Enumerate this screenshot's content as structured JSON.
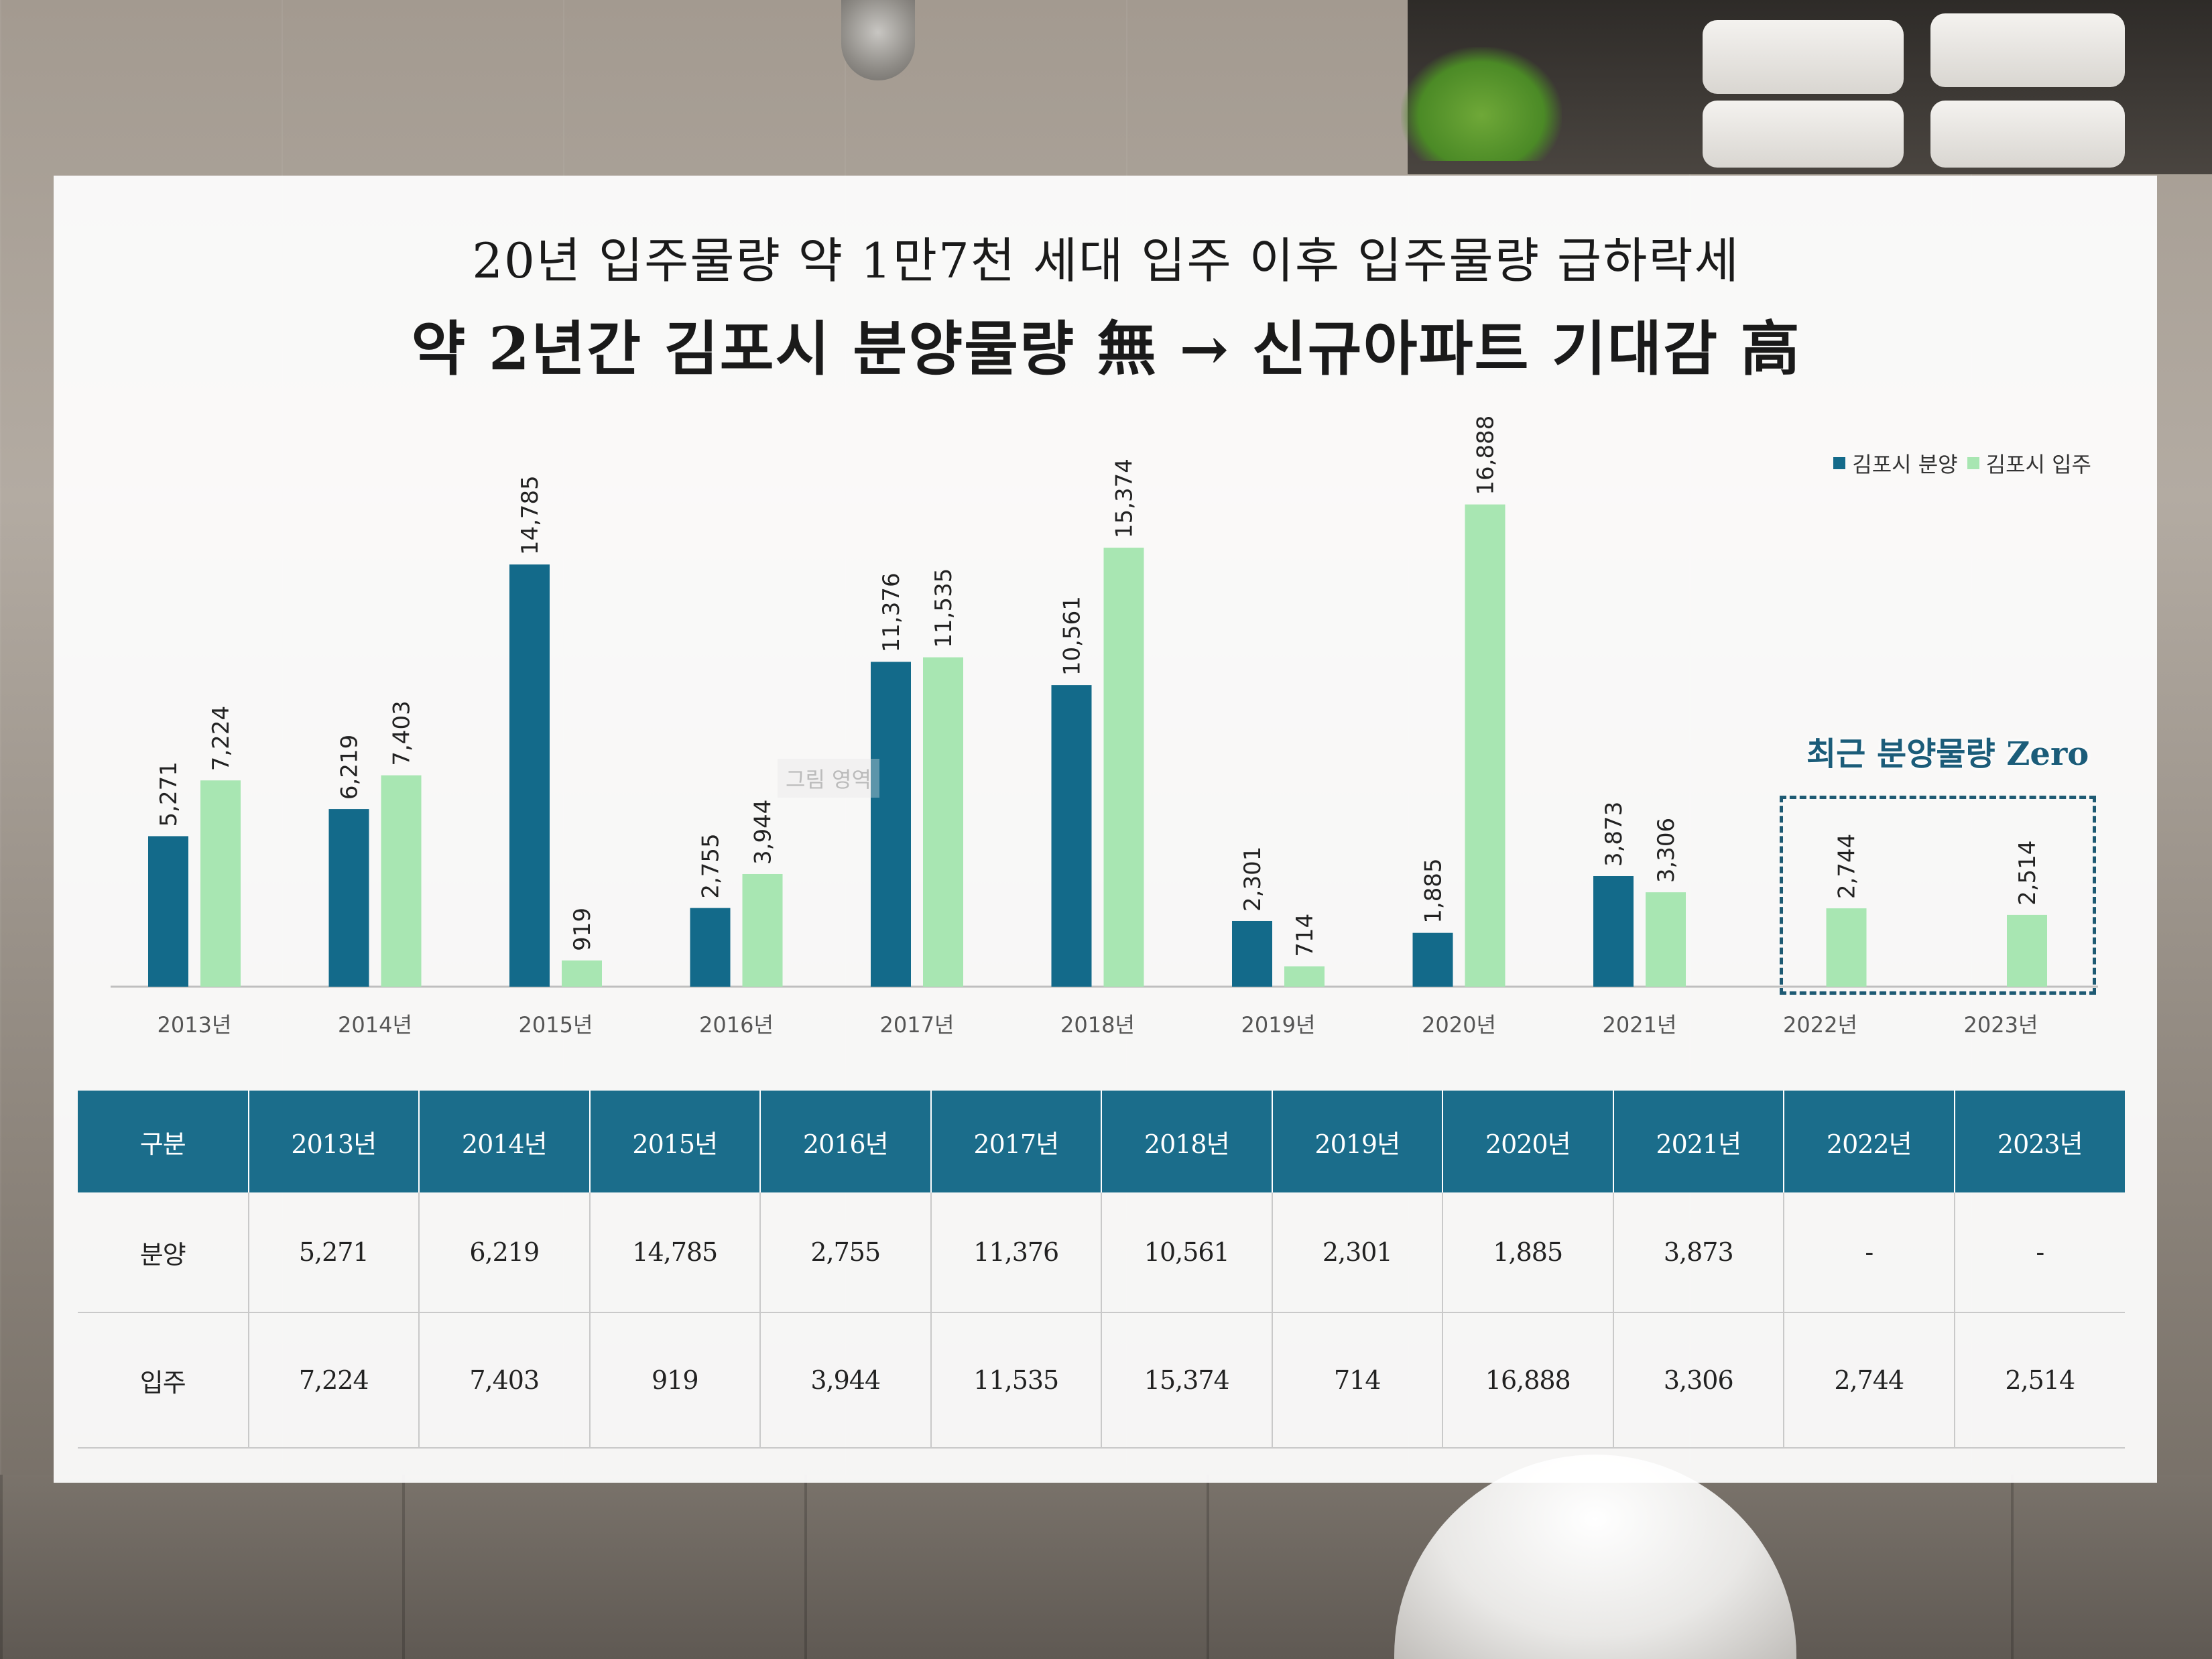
{
  "header": {
    "line1": "20년 입주물량 약 1만7천 세대 입주 이후 입주물량 급하락세",
    "line2": "약 2년간 김포시 분양물량 無 → 신규아파트 기대감 高"
  },
  "watermark": "그림 영역",
  "annotation": "최근 분양물량 Zero",
  "colors": {
    "sale": "#136a8a",
    "move_in": "#a8e6b2",
    "header_bg": "#1b6d8b"
  },
  "chart_data": {
    "type": "bar",
    "title": "",
    "xlabel": "",
    "ylabel": "",
    "grid": false,
    "legend_position": "top-right",
    "categories": [
      "2013년",
      "2014년",
      "2015년",
      "2016년",
      "2017년",
      "2018년",
      "2019년",
      "2020년",
      "2021년",
      "2022년",
      "2023년"
    ],
    "series": [
      {
        "name": "김포시 분양",
        "values": [
          5271,
          6219,
          14785,
          2755,
          11376,
          10561,
          2301,
          1885,
          3873,
          null,
          null
        ],
        "labels": [
          "5,271",
          "6,219",
          "14,785",
          "2,755",
          "11,376",
          "10,561",
          "2,301",
          "1,885",
          "3,873",
          "",
          ""
        ]
      },
      {
        "name": "김포시 입주",
        "values": [
          7224,
          7403,
          919,
          3944,
          11535,
          15374,
          714,
          16888,
          3306,
          2744,
          2514
        ],
        "labels": [
          "7,224",
          "7,403",
          "919",
          "3,944",
          "11,535",
          "15,374",
          "714",
          "16,888",
          "3,306",
          "2,744",
          "2,514"
        ]
      }
    ],
    "ylim": [
      0,
      20000
    ]
  },
  "table": {
    "headers": [
      "구분",
      "2013년",
      "2014년",
      "2015년",
      "2016년",
      "2017년",
      "2018년",
      "2019년",
      "2020년",
      "2021년",
      "2022년",
      "2023년"
    ],
    "rows": [
      [
        "분양",
        "5,271",
        "6,219",
        "14,785",
        "2,755",
        "11,376",
        "10,561",
        "2,301",
        "1,885",
        "3,873",
        "-",
        "-"
      ],
      [
        "입주",
        "7,224",
        "7,403",
        "919",
        "3,944",
        "11,535",
        "15,374",
        "714",
        "16,888",
        "3,306",
        "2,744",
        "2,514"
      ]
    ]
  }
}
